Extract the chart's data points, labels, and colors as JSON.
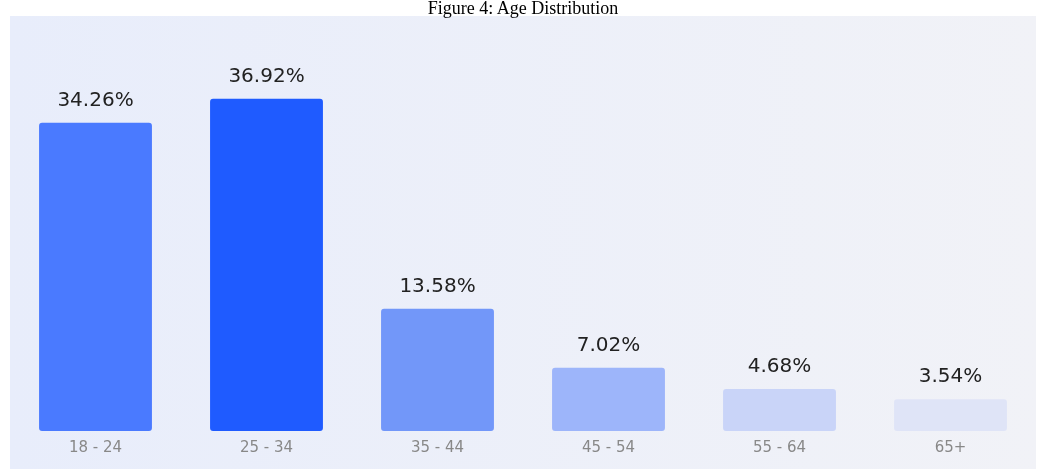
{
  "chart_data": {
    "type": "bar",
    "title": "Figure 4: Age Distribution",
    "categories": [
      "18 - 24",
      "25 - 34",
      "35 - 44",
      "45 - 54",
      "55 - 64",
      "65+"
    ],
    "values": [
      34.26,
      36.92,
      13.58,
      7.02,
      4.68,
      3.54
    ],
    "colors": [
      "#4a7aff",
      "#1f5bff",
      "#7297f9",
      "#9db5fa",
      "#c9d4f8",
      "#dfe4f7"
    ],
    "value_labels": [
      "34.26%",
      "36.92%",
      "13.58%",
      "7.02%",
      "4.68%",
      "3.54%"
    ],
    "grid": false,
    "legend": false
  }
}
